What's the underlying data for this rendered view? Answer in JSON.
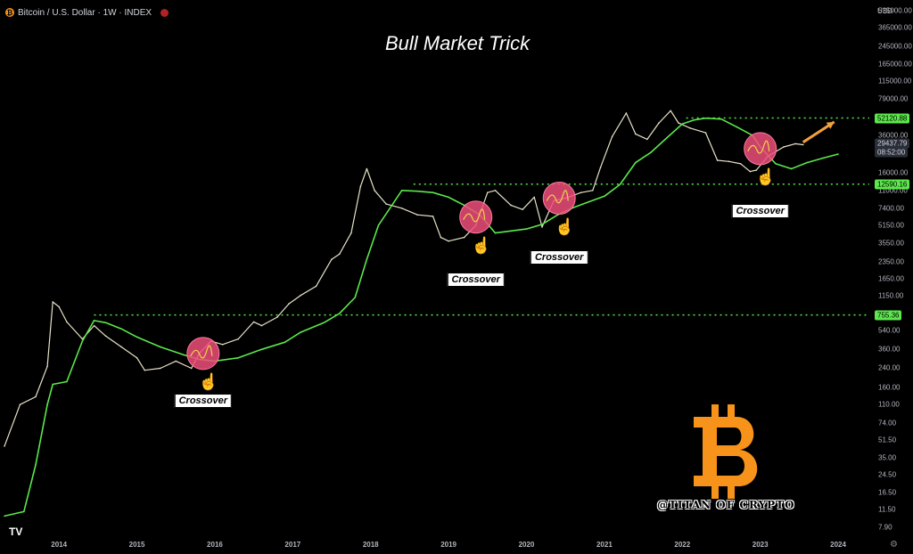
{
  "header": {
    "coin_glyph": "₿",
    "symbol_text": "Bitcoin / U.S. Dollar · 1W · INDEX"
  },
  "chart_data": {
    "type": "line",
    "title": "Bull Market Trick",
    "currency": "USD",
    "y_scale": "log",
    "ylim": [
      7,
      600000
    ],
    "xlim": [
      2013.3,
      2024.4
    ],
    "y_ticks": [
      "525000.00",
      "365000.00",
      "245000.00",
      "165000.00",
      "115000.00",
      "79000.00",
      "36000.00",
      "16000.00",
      "11000.00",
      "7400.00",
      "5150.00",
      "3550.00",
      "2350.00",
      "1650.00",
      "1150.00",
      "540.00",
      "360.00",
      "240.00",
      "160.00",
      "110.00",
      "74.00",
      "51.50",
      "35.00",
      "24.50",
      "16.50",
      "11.50",
      "7.90"
    ],
    "x_ticks": [
      "2014",
      "2015",
      "2016",
      "2017",
      "2018",
      "2019",
      "2020",
      "2021",
      "2022",
      "2023",
      "2024"
    ],
    "series": [
      {
        "color": "#e8e3c8",
        "x": [
          2013.3,
          2013.5,
          2013.7,
          2013.85,
          2013.92,
          2014.0,
          2014.1,
          2014.3,
          2014.45,
          2014.6,
          2014.8,
          2015.0,
          2015.1,
          2015.3,
          2015.5,
          2015.7,
          2015.8,
          2015.95,
          2016.1,
          2016.3,
          2016.5,
          2016.6,
          2016.8,
          2016.95,
          2017.1,
          2017.3,
          2017.5,
          2017.6,
          2017.75,
          2017.87,
          2017.95,
          2018.05,
          2018.2,
          2018.4,
          2018.6,
          2018.8,
          2018.9,
          2019.0,
          2019.2,
          2019.35,
          2019.5,
          2019.6,
          2019.8,
          2019.95,
          2020.1,
          2020.2,
          2020.35,
          2020.5,
          2020.7,
          2020.85,
          2020.95,
          2021.1,
          2021.28,
          2021.4,
          2021.55,
          2021.7,
          2021.85,
          2021.95,
          2022.1,
          2022.3,
          2022.45,
          2022.6,
          2022.75,
          2022.87,
          2022.95,
          2023.1,
          2023.3,
          2023.45,
          2023.55
        ],
        "y": [
          45,
          110,
          130,
          250,
          1000,
          900,
          650,
          450,
          600,
          480,
          380,
          300,
          230,
          240,
          280,
          240,
          330,
          430,
          400,
          450,
          650,
          600,
          720,
          960,
          1150,
          1400,
          2500,
          2800,
          4400,
          12000,
          17500,
          11000,
          8200,
          7500,
          6500,
          6300,
          4000,
          3700,
          4000,
          5200,
          10500,
          11000,
          8000,
          7300,
          9500,
          5000,
          8800,
          9300,
          10500,
          11000,
          18000,
          35000,
          58000,
          37000,
          33000,
          47000,
          61000,
          47000,
          42000,
          38000,
          21000,
          20500,
          19500,
          16500,
          17000,
          23000,
          28000,
          30000,
          29400
        ]
      },
      {
        "color": "#5be84b",
        "x": [
          2013.3,
          2013.55,
          2013.7,
          2013.85,
          2013.92,
          2014.1,
          2014.3,
          2014.45,
          2014.6,
          2014.8,
          2015.0,
          2015.3,
          2015.6,
          2015.8,
          2016.0,
          2016.3,
          2016.6,
          2016.9,
          2017.1,
          2017.4,
          2017.6,
          2017.8,
          2017.95,
          2018.1,
          2018.4,
          2018.6,
          2018.8,
          2019.0,
          2019.2,
          2019.4,
          2019.6,
          2019.8,
          2020.0,
          2020.2,
          2020.4,
          2020.6,
          2020.8,
          2021.0,
          2021.2,
          2021.4,
          2021.6,
          2021.8,
          2022.0,
          2022.15,
          2022.3,
          2022.5,
          2022.7,
          2022.9,
          2023.0,
          2023.2,
          2023.4,
          2023.6,
          2023.8,
          2024.0
        ],
        "y": [
          10,
          11,
          30,
          110,
          170,
          180,
          430,
          670,
          640,
          560,
          470,
          380,
          320,
          290,
          280,
          300,
          360,
          420,
          520,
          640,
          780,
          1100,
          2500,
          5200,
          11000,
          10800,
          10500,
          9500,
          8000,
          6500,
          4400,
          4600,
          4800,
          5300,
          6500,
          7600,
          8600,
          9700,
          12500,
          20000,
          25000,
          34000,
          46000,
          50000,
          52000,
          51000,
          43000,
          36000,
          28000,
          19500,
          17500,
          20000,
          22000,
          24000
        ]
      }
    ],
    "horizontal_levels": [
      {
        "value": 52120.88,
        "label": "52120.88",
        "xmin": 2022.05
      },
      {
        "value": 12590.16,
        "label": "12590.16",
        "xmin": 2018.55
      },
      {
        "value": 755.36,
        "label": "755.36",
        "xmin": 2014.45
      }
    ],
    "price_label": {
      "value": 29437.79,
      "label": "29437.79",
      "countdown": "08:52:00"
    },
    "annotations": [
      {
        "x": 2015.85,
        "y": 330,
        "text": "Crossover",
        "text_y": 120
      },
      {
        "x": 2019.35,
        "y": 6200,
        "text": "Crossover",
        "text_y": 1600
      },
      {
        "x": 2020.42,
        "y": 9300,
        "text": "Crossover",
        "text_y": 2600
      },
      {
        "x": 2023.0,
        "y": 27000,
        "text": "Crossover",
        "text_y": 7100
      }
    ],
    "arrow": {
      "x1": 2023.55,
      "y1": 31000,
      "x2": 2023.95,
      "y2": 48000,
      "color": "#f2a13b"
    },
    "colors": {
      "price": "#e8e3c8",
      "ma": "#5be84b",
      "circle": "#ee4d7a",
      "arrow": "#f2a13b"
    }
  },
  "watermark": {
    "handle": "@TITAN OF CRYPTO",
    "logo_glyph": "₿"
  },
  "tv_logo": "TV"
}
